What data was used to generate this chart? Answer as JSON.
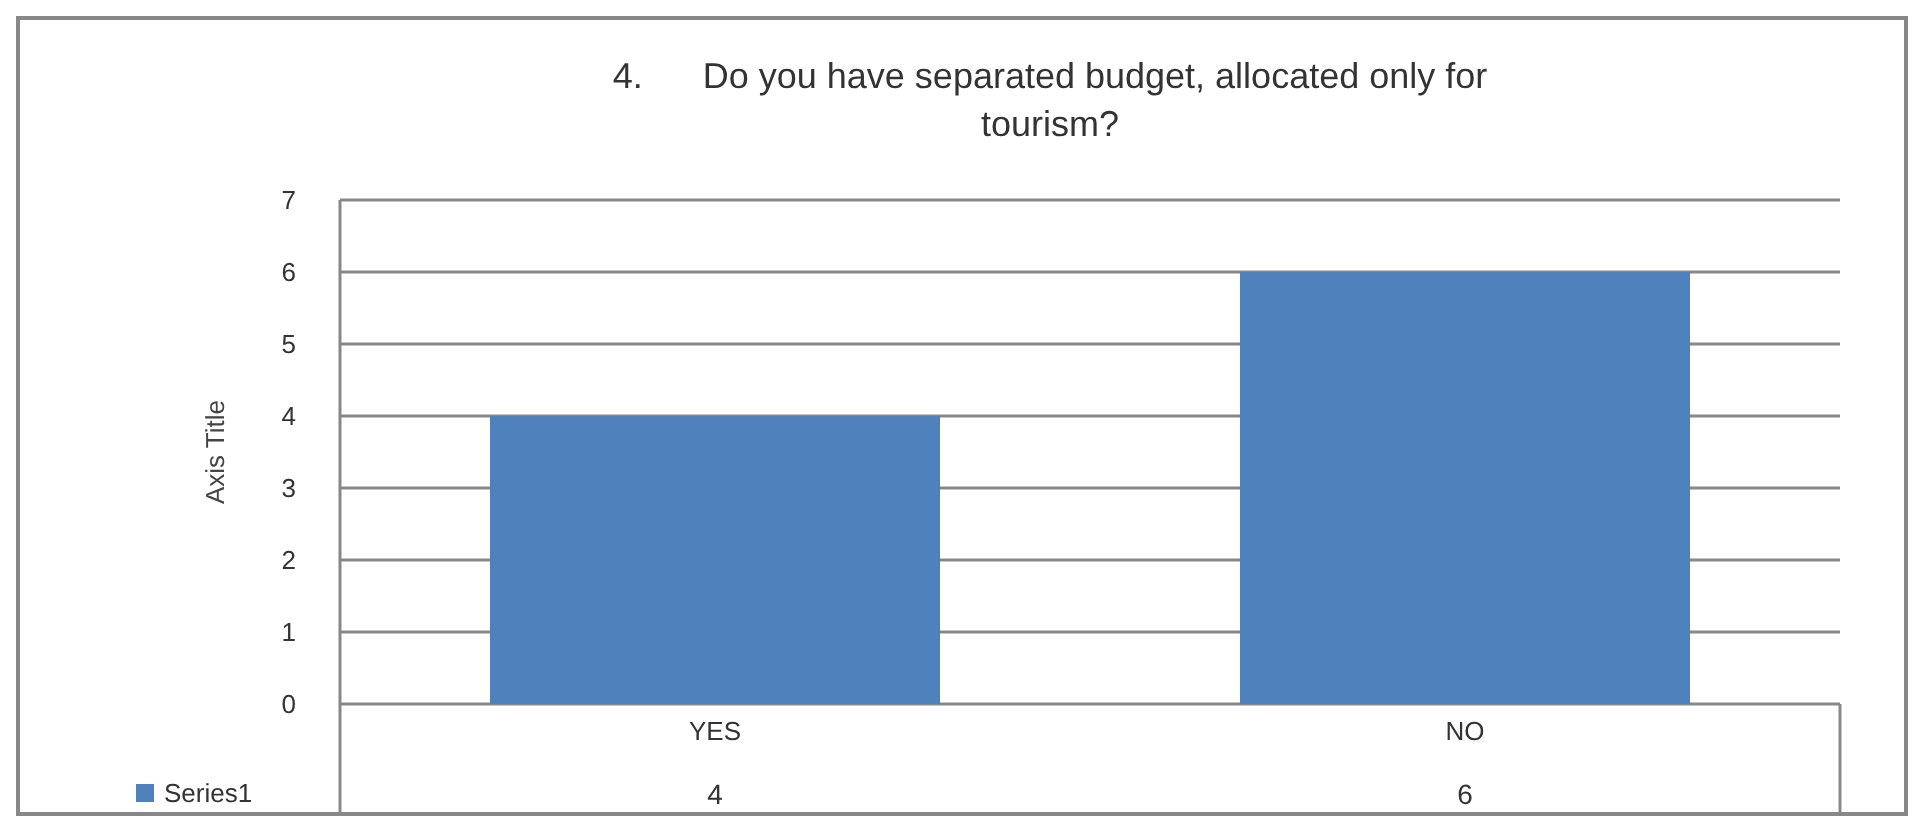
{
  "chart_data": {
    "type": "bar",
    "title": "4.      Do you have separated budget, allocated only for tourism?",
    "ylabel": "Axis Title",
    "categories": [
      "YES",
      "NO"
    ],
    "series": [
      {
        "name": "Series1",
        "color": "#4f81bd",
        "values": [
          4,
          6
        ]
      }
    ],
    "ylim": [
      0,
      7
    ],
    "yticks": [
      0,
      1,
      2,
      3,
      4,
      5,
      6,
      7
    ],
    "grid": "y",
    "data_labels": true,
    "legend": "bottom"
  }
}
